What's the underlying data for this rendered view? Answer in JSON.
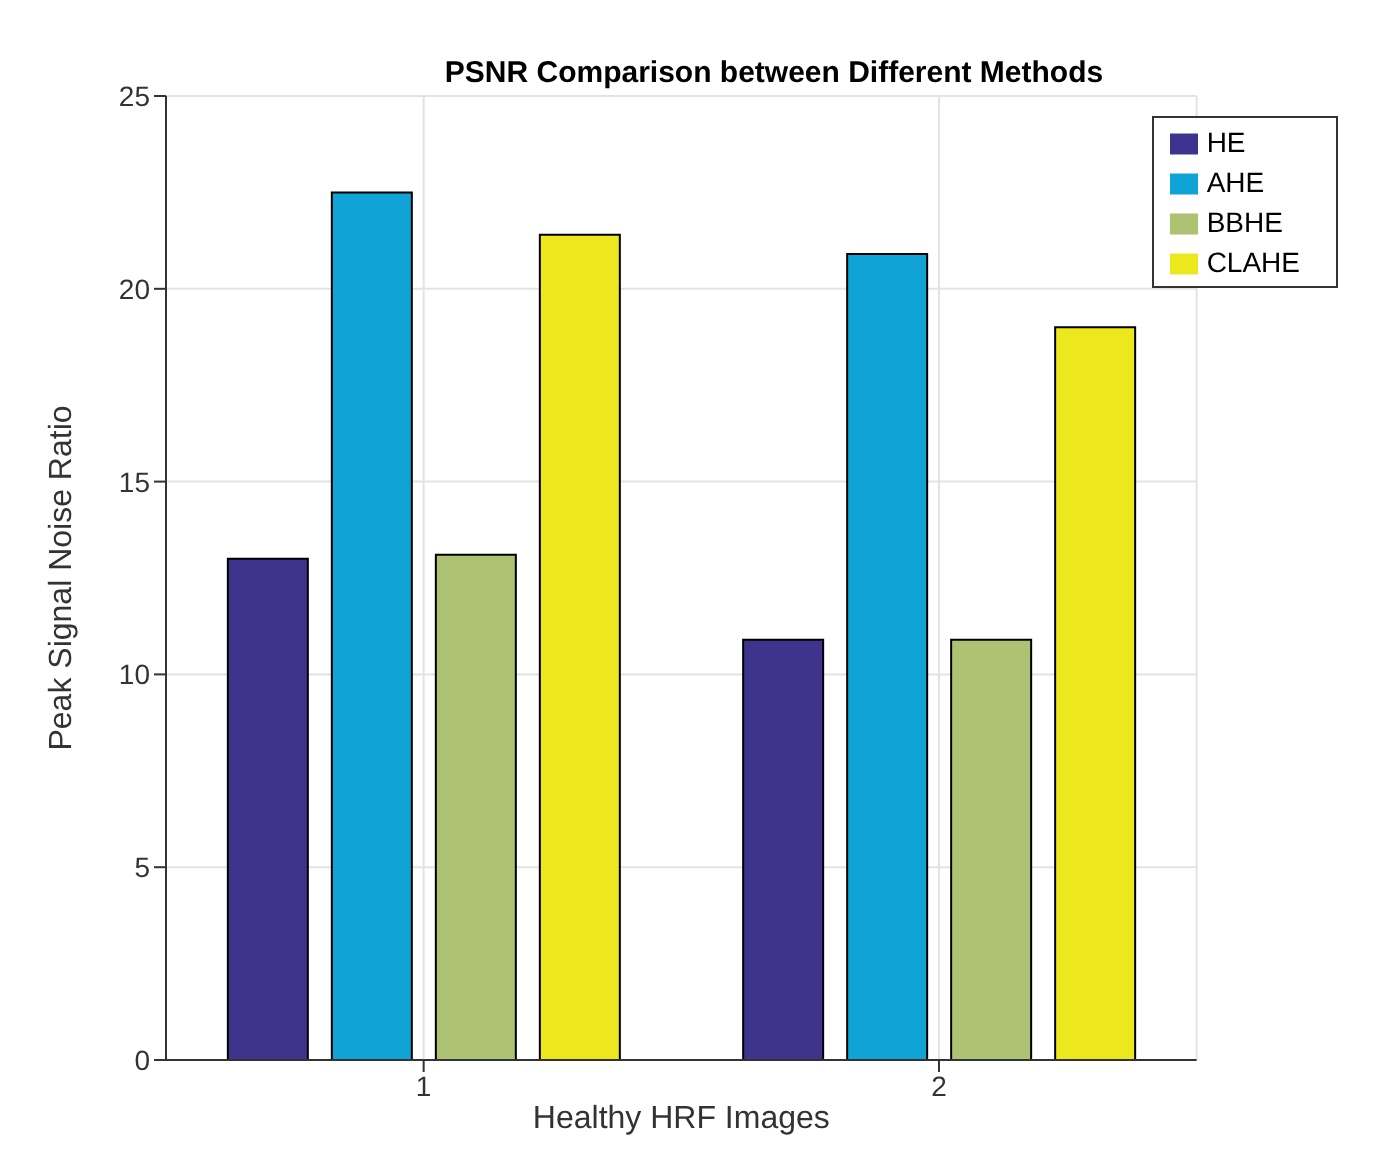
{
  "chart_data": {
    "type": "bar",
    "title": "PSNR Comparison between Different Methods",
    "xlabel": "Healthy HRF Images",
    "ylabel": "Peak Signal Noise Ratio",
    "categories": [
      "1",
      "2"
    ],
    "series": [
      {
        "name": "HE",
        "color": "#3e348d",
        "values": [
          13.0,
          10.9
        ]
      },
      {
        "name": "AHE",
        "color": "#10a3d6",
        "values": [
          22.5,
          20.9
        ]
      },
      {
        "name": "BBHE",
        "color": "#adc273",
        "values": [
          13.1,
          10.9
        ]
      },
      {
        "name": "CLAHE",
        "color": "#ede81e",
        "values": [
          21.4,
          19.0
        ]
      }
    ],
    "ylim": [
      0,
      25
    ],
    "yticks": [
      0,
      5,
      10,
      15,
      20,
      25
    ],
    "grid": true,
    "legend": "top right"
  }
}
